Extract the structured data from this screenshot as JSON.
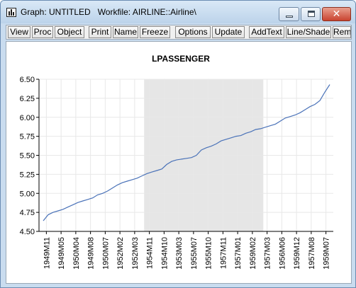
{
  "window": {
    "title": "Graph: UNTITLED   Workfile: AIRLINE::Airline\\"
  },
  "icons": {
    "app": "graph-window-icon",
    "minimize": "minimize-icon",
    "maximize": "maximize-icon",
    "close": "close-icon"
  },
  "toolbar": {
    "buttons": [
      "View",
      "Proc",
      "Object",
      "Print",
      "Name",
      "Freeze",
      "Options",
      "Update",
      "AddText",
      "Line/Shade",
      "Rem"
    ]
  },
  "colors": {
    "line": "#4a72b8",
    "shade": "#e6e6e6",
    "grid": "#e8e8e8",
    "window_frame": "#c9dcef",
    "close_button": "#c94330"
  },
  "chart_data": {
    "type": "line",
    "title": "LPASSENGER",
    "xlabel": "",
    "ylabel": "",
    "ylim": [
      4.5,
      6.5
    ],
    "yticks": [
      "4.50",
      "4.75",
      "5.00",
      "5.25",
      "5.50",
      "5.75",
      "6.00",
      "6.25",
      "6.50"
    ],
    "xtick_labels": [
      "1949M11",
      "1949M05",
      "1950M04",
      "1949M08",
      "1950M07",
      "1952M02",
      "1952M03",
      "1954M11",
      "1954M10",
      "1953M03",
      "1955M07",
      "1955M10",
      "1957M11",
      "1957M01",
      "1959M02",
      "1957M03",
      "1956M06",
      "1959M12",
      "1957M08",
      "1959M07"
    ],
    "grid": true,
    "shaded_region": {
      "from_label": "1954M11",
      "to_label": "1957M03"
    },
    "series": [
      {
        "values": [
          4.64,
          4.72,
          4.75,
          4.77,
          4.79,
          4.82,
          4.85,
          4.88,
          4.9,
          4.92,
          4.94,
          4.98,
          5.0,
          5.03,
          5.07,
          5.11,
          5.14,
          5.16,
          5.18,
          5.2,
          5.23,
          5.26,
          5.28,
          5.3,
          5.32,
          5.38,
          5.42,
          5.44,
          5.45,
          5.46,
          5.47,
          5.5,
          5.57,
          5.6,
          5.62,
          5.65,
          5.69,
          5.71,
          5.73,
          5.75,
          5.76,
          5.79,
          5.81,
          5.84,
          5.85,
          5.87,
          5.89,
          5.91,
          5.95,
          5.99,
          6.01,
          6.03,
          6.06,
          6.1,
          6.14,
          6.17,
          6.22,
          6.33,
          6.43
        ]
      }
    ]
  }
}
